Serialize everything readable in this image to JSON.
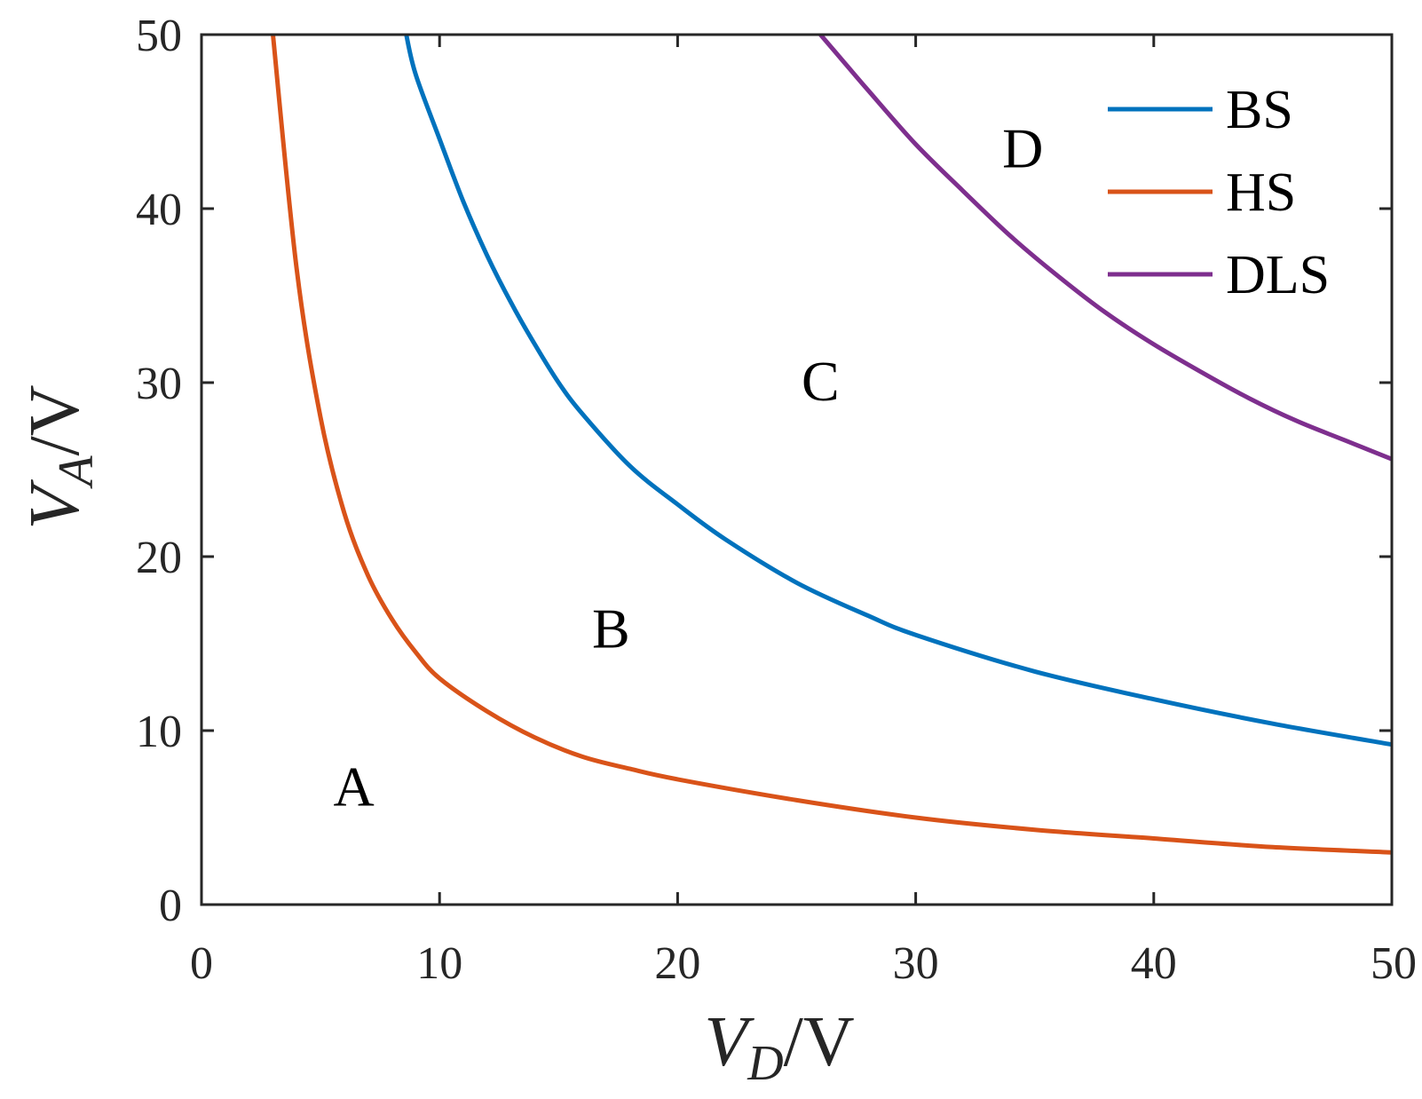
{
  "chart_data": {
    "type": "line",
    "xlabel": {
      "var": "V",
      "sub": "D",
      "unit": "/V"
    },
    "ylabel": {
      "var": "V",
      "sub": "A",
      "unit": "/V"
    },
    "xlim": [
      0,
      50
    ],
    "ylim": [
      0,
      50
    ],
    "xticks": [
      "0",
      "10",
      "20",
      "30",
      "40",
      "50"
    ],
    "yticks": [
      "0",
      "10",
      "20",
      "30",
      "40",
      "50"
    ],
    "grid": false,
    "legend": "top-right",
    "series": [
      {
        "name": "BS",
        "color": "#0072BD",
        "x": [
          8.6,
          9,
          10,
          11,
          12,
          13,
          14,
          15,
          16,
          18,
          20,
          22,
          25,
          28,
          30,
          35,
          40,
          45,
          50
        ],
        "y": [
          50,
          47.7,
          44.0,
          40.4,
          37.3,
          34.6,
          32.2,
          30.0,
          28.2,
          25.2,
          23.0,
          21.0,
          18.5,
          16.6,
          15.5,
          13.4,
          11.8,
          10.4,
          9.2
        ]
      },
      {
        "name": "HS",
        "color": "#D95319",
        "x": [
          3,
          4,
          5,
          6,
          7,
          8,
          9,
          10,
          12,
          14,
          16,
          18,
          20,
          25,
          30,
          35,
          40,
          45,
          50
        ],
        "y": [
          50,
          36.5,
          28.0,
          22.5,
          18.9,
          16.4,
          14.5,
          13.0,
          11.1,
          9.6,
          8.5,
          7.8,
          7.2,
          6.0,
          5.0,
          4.3,
          3.8,
          3.3,
          3.0
        ]
      },
      {
        "name": "DLS",
        "color": "#7E2F8E",
        "x": [
          26,
          27,
          28,
          30,
          32,
          34,
          36,
          38,
          40,
          42,
          44,
          46,
          48,
          50
        ],
        "y": [
          50,
          48.4,
          46.8,
          43.7,
          41.0,
          38.4,
          36.1,
          34.0,
          32.2,
          30.6,
          29.1,
          27.8,
          26.7,
          25.6
        ]
      }
    ],
    "annotations": [
      {
        "text": "A",
        "x": 6.4,
        "y": 6.8
      },
      {
        "text": "B",
        "x": 17.2,
        "y": 15.9
      },
      {
        "text": "C",
        "x": 26.0,
        "y": 30.1
      },
      {
        "text": "D",
        "x": 34.5,
        "y": 43.5
      }
    ]
  }
}
